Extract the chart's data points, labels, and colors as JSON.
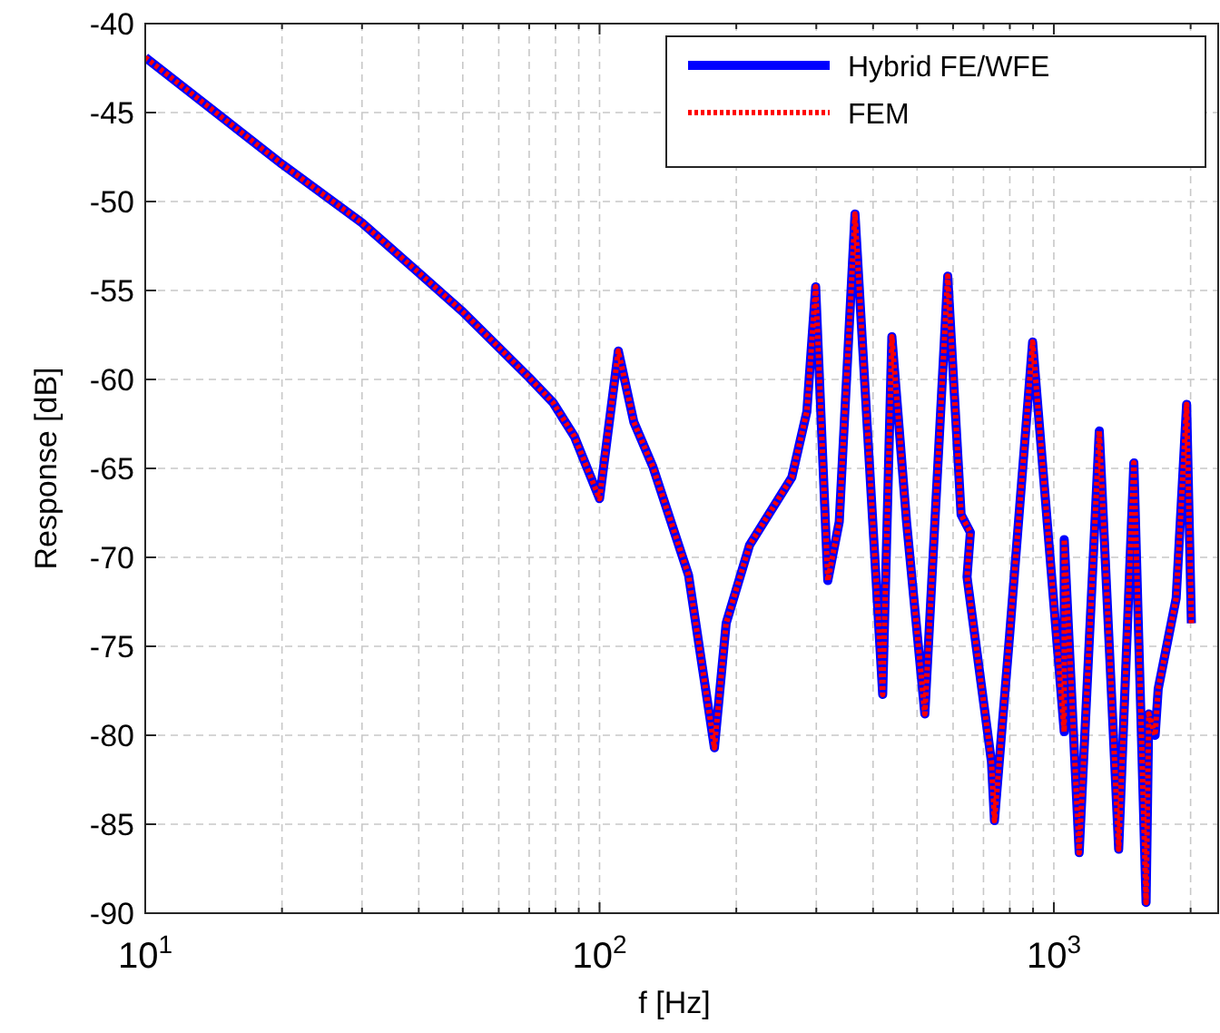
{
  "chart_data": {
    "type": "line",
    "xlabel": "f [Hz]",
    "ylabel": "Response [dB]",
    "log": "x",
    "grid": true,
    "legend": "top right",
    "xlim": [
      10,
      2300
    ],
    "ylim": [
      -90,
      -40
    ],
    "xticks": [
      {
        "value": 10,
        "label": "10$^{1}$"
      },
      {
        "value": 20,
        "label": null
      },
      {
        "value": 30,
        "label": null
      },
      {
        "value": 40,
        "label": null
      },
      {
        "value": 50,
        "label": null
      },
      {
        "value": 60,
        "label": null
      },
      {
        "value": 70,
        "label": null
      },
      {
        "value": 80,
        "label": null
      },
      {
        "value": 90,
        "label": null
      },
      {
        "value": 100,
        "label": "10$^{2}$"
      },
      {
        "value": 200,
        "label": null
      },
      {
        "value": 300,
        "label": null
      },
      {
        "value": 400,
        "label": null
      },
      {
        "value": 500,
        "label": null
      },
      {
        "value": 600,
        "label": null
      },
      {
        "value": 700,
        "label": null
      },
      {
        "value": 800,
        "label": null
      },
      {
        "value": 900,
        "label": null
      },
      {
        "value": 1000,
        "label": "10$^{3}$"
      },
      {
        "value": 2000,
        "label": null
      }
    ],
    "yticks": [
      -90,
      -85,
      -80,
      -75,
      -70,
      -65,
      -60,
      -55,
      -50,
      -45,
      -40
    ],
    "x": [
      10,
      20,
      30,
      40,
      50,
      60,
      70,
      79,
      88,
      100,
      110,
      119,
      131,
      157,
      179,
      190,
      214,
      265,
      286,
      299,
      318,
      337,
      365,
      420,
      440,
      474,
      520,
      584,
      625,
      655,
      644,
      729,
      740,
      799,
      898,
      1054,
      1054,
      1137,
      1259,
      1389,
      1500,
      1596,
      1618,
      1671,
      1697,
      1859,
      1960,
      2008
    ],
    "series": [
      {
        "name": "Hybrid FE/WFE",
        "color": "#0000ff",
        "line_style": "solid",
        "values": [
          -41.9,
          -47.9,
          -51.2,
          -54,
          -56.2,
          -58.2,
          -59.9,
          -61.3,
          -63.2,
          -66.7,
          -58.4,
          -62.4,
          -64.9,
          -71,
          -80.7,
          -73.7,
          -69.3,
          -65.5,
          -61.8,
          -54.8,
          -71.3,
          -68,
          -50.7,
          -77.7,
          -57.6,
          -68,
          -78.8,
          -54.2,
          -67.6,
          -68.6,
          -71.1,
          -81.5,
          -84.8,
          -74.4,
          -57.9,
          -79.8,
          -69,
          -86.6,
          -62.9,
          -86.4,
          -64.7,
          -89.4,
          -78.8,
          -80,
          -77.4,
          -72.3,
          -61.4,
          -73.7
        ]
      },
      {
        "name": "FEM",
        "color": "#ff0000",
        "line_style": "dotted",
        "values": [
          -41.9,
          -47.9,
          -51.2,
          -54,
          -56.2,
          -58.2,
          -59.9,
          -61.3,
          -63.2,
          -66.7,
          -58.4,
          -62.4,
          -64.9,
          -71,
          -80.7,
          -73.7,
          -69.3,
          -65.5,
          -61.8,
          -54.8,
          -71.3,
          -68,
          -50.7,
          -77.7,
          -57.6,
          -68,
          -78.8,
          -54.2,
          -67.6,
          -68.6,
          -71.1,
          -81.5,
          -84.8,
          -74.4,
          -57.9,
          -79.8,
          -69,
          -86.6,
          -62.9,
          -86.4,
          -64.7,
          -89.4,
          -78.8,
          -80,
          -77.4,
          -72.3,
          -61.4,
          -73.7
        ]
      }
    ]
  }
}
